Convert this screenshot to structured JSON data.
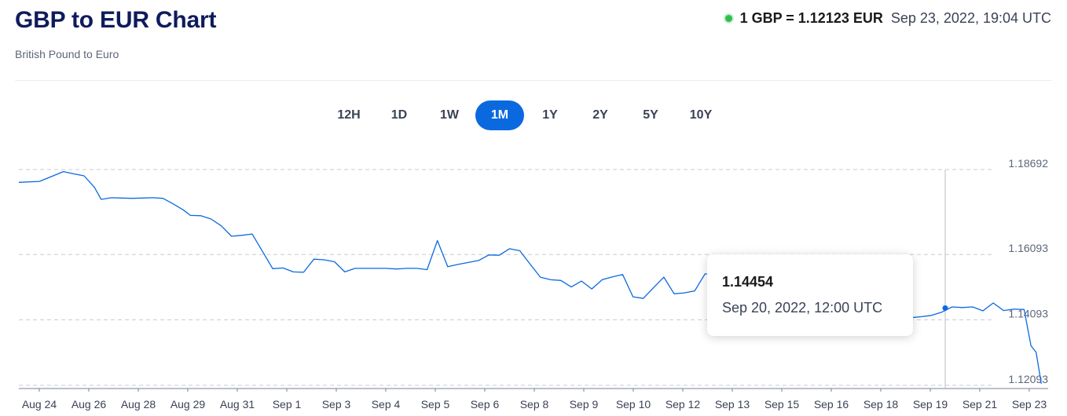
{
  "header": {
    "title": "GBP to EUR Chart",
    "subtitle": "British Pound to Euro",
    "rate": "1 GBP = 1.12123 EUR",
    "timestamp": "Sep 23, 2022, 19:04 UTC",
    "live_color": "#2fbf4a"
  },
  "range_tabs": [
    {
      "label": "12H",
      "active": false
    },
    {
      "label": "1D",
      "active": false
    },
    {
      "label": "1W",
      "active": false
    },
    {
      "label": "1M",
      "active": true
    },
    {
      "label": "1Y",
      "active": false
    },
    {
      "label": "2Y",
      "active": false
    },
    {
      "label": "5Y",
      "active": false
    },
    {
      "label": "10Y",
      "active": false
    }
  ],
  "tooltip": {
    "value": "1.14454",
    "date": "Sep 20, 2022, 12:00 UTC"
  },
  "chart_data": {
    "type": "line",
    "title": "",
    "xlabel": "",
    "ylabel": "",
    "line_color": "#0b69e0",
    "grid": "horizontal dashed",
    "legend": "none",
    "x_tick_labels": [
      "Aug 24",
      "Aug 26",
      "Aug 28",
      "Aug 29",
      "Aug 31",
      "Sep 1",
      "Sep 3",
      "Sep 4",
      "Sep 5",
      "Sep 6",
      "Sep 8",
      "Sep 9",
      "Sep 10",
      "Sep 12",
      "Sep 13",
      "Sep 15",
      "Sep 16",
      "Sep 18",
      "Sep 19",
      "Sep 21",
      "Sep 23"
    ],
    "y_tick_labels": [
      "1.18692",
      "1.16093",
      "1.14093",
      "1.12093"
    ],
    "y_tick_values": [
      1.18692,
      1.16093,
      1.14093,
      1.12093
    ],
    "ylim": [
      1.11993,
      1.18692
    ],
    "xlim": [
      0,
      30
    ],
    "x": [
      0,
      0.6,
      1.0,
      1.3,
      1.6,
      1.9,
      2.2,
      2.4,
      2.7,
      3.0,
      3.3,
      3.6,
      3.9,
      4.2,
      4.5,
      4.8,
      5.0,
      5.3,
      5.6,
      5.9,
      6.2,
      6.5,
      6.8,
      7.1,
      7.4,
      7.7,
      8.0,
      8.3,
      8.6,
      8.9,
      9.2,
      9.5,
      9.8,
      10.1,
      10.4,
      10.7,
      11.0,
      11.3,
      11.6,
      11.9,
      12.2,
      12.5,
      12.8,
      13.1,
      13.4,
      13.7,
      14.0,
      14.3,
      14.6,
      14.9,
      15.2,
      15.5,
      15.8,
      16.1,
      16.4,
      16.7,
      17.0,
      17.3,
      17.6,
      17.9,
      18.2,
      18.5,
      18.8,
      19.1,
      19.4,
      19.7,
      20.0,
      20.3,
      20.6,
      20.9,
      21.2,
      21.5,
      21.8,
      22.1,
      22.4,
      22.7,
      23.0,
      23.3,
      23.6,
      23.9,
      24.2,
      24.5,
      24.8,
      25.1,
      25.4,
      25.7,
      26.0,
      26.3,
      26.6,
      26.9,
      27.2,
      27.5,
      27.8,
      28.1,
      28.4,
      28.7,
      29.0,
      29.3,
      29.5,
      29.65,
      29.8
    ],
    "y": [
      1.183,
      1.1833,
      1.185,
      1.1863,
      1.1856,
      1.185,
      1.1815,
      1.1778,
      1.1783,
      1.1782,
      1.1781,
      1.1782,
      1.1783,
      1.1781,
      1.1764,
      1.1745,
      1.1729,
      1.1728,
      1.1718,
      1.1697,
      1.1665,
      1.1668,
      1.1672,
      1.1619,
      1.1566,
      1.1568,
      1.1556,
      1.1555,
      1.1595,
      1.1593,
      1.1587,
      1.1556,
      1.1567,
      1.1567,
      1.1567,
      1.1567,
      1.1565,
      1.1567,
      1.1567,
      1.1563,
      1.1652,
      1.1572,
      1.1579,
      1.1585,
      1.1591,
      1.1608,
      1.1607,
      1.1627,
      1.1621,
      1.158,
      1.154,
      1.1532,
      1.153,
      1.151,
      1.1528,
      1.1504,
      1.1532,
      1.1541,
      1.1548,
      1.148,
      1.1475,
      1.1508,
      1.154,
      1.1489,
      1.1492,
      1.1498,
      1.155,
      1.1547,
      1.1528,
      1.155,
      1.1548,
      1.1552,
      1.1533,
      1.1545,
      1.1496,
      1.146,
      1.1436,
      1.1428,
      1.1433,
      1.1427,
      1.1402,
      1.1397,
      1.1395,
      1.1398,
      1.1414,
      1.1445,
      1.1416,
      1.1419,
      1.1423,
      1.1433,
      1.1449,
      1.1447,
      1.1449,
      1.1437,
      1.1461,
      1.1438,
      1.1442,
      1.1441,
      1.133,
      1.131,
      1.1214
    ],
    "highlight": {
      "x": 27.0,
      "y": 1.14454
    }
  }
}
